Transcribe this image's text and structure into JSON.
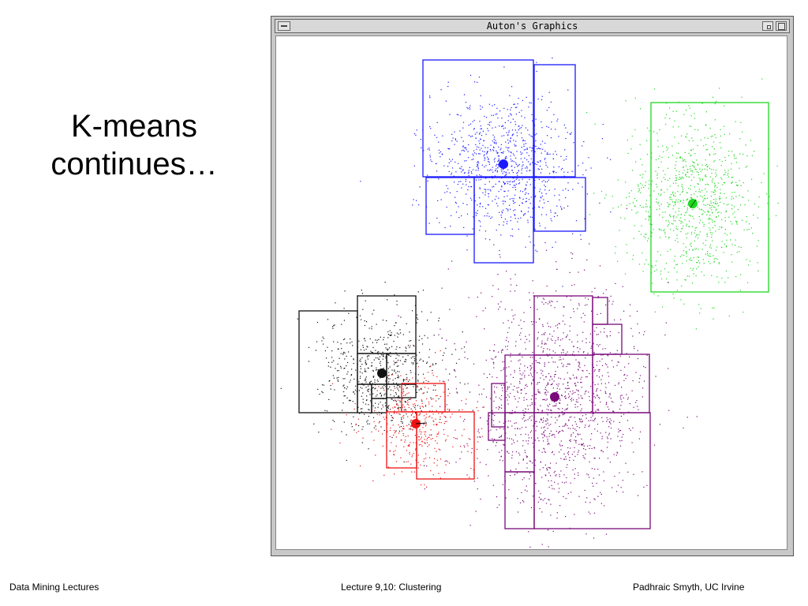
{
  "slide": {
    "title_line1": "K-means",
    "title_line2": "continues…"
  },
  "window": {
    "title": "Auton's Graphics"
  },
  "footer": {
    "left": "Data Mining Lectures",
    "center": "Lecture 9,10: Clustering",
    "right": "Padhraic Smyth, UC Irvine"
  },
  "clusters": [
    {
      "name": "blue",
      "color": "#1a1aff",
      "center": [
        637,
        207
      ],
      "spread": [
        45,
        45
      ],
      "count": 900
    },
    {
      "name": "green",
      "color": "#1ed81e",
      "center": [
        877,
        257
      ],
      "spread": [
        42,
        55
      ],
      "count": 900
    },
    {
      "name": "black",
      "color": "#111111",
      "center": [
        483,
        472
      ],
      "spread": [
        40,
        40
      ],
      "count": 650
    },
    {
      "name": "red",
      "color": "#ee1111",
      "center": [
        526,
        536
      ],
      "spread": [
        35,
        30
      ],
      "count": 380
    },
    {
      "name": "purple",
      "color": "#7a0a7a",
      "center": [
        702,
        502
      ],
      "spread": [
        55,
        70
      ],
      "count": 1400
    }
  ]
}
